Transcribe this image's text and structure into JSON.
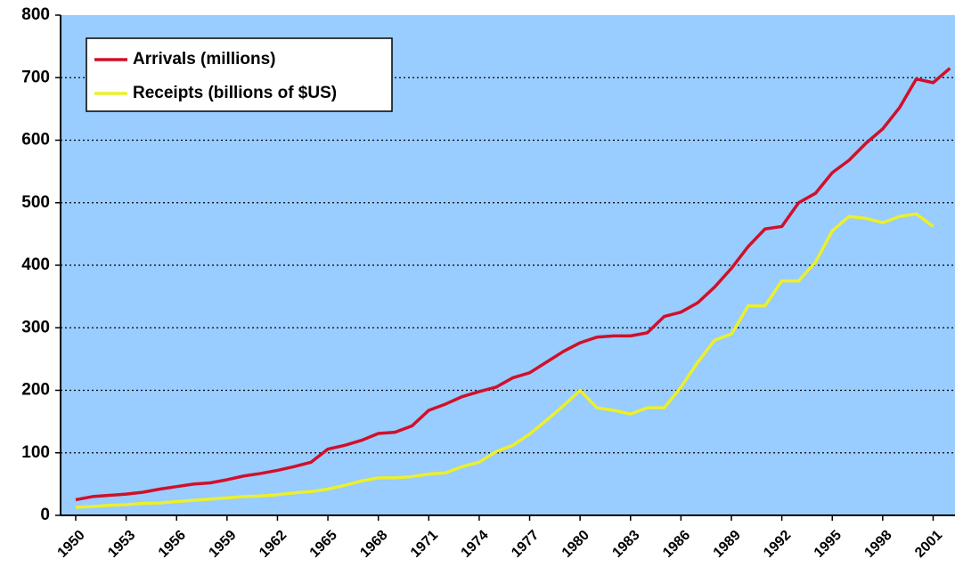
{
  "chart_data": {
    "type": "line",
    "x": [
      1950,
      1951,
      1952,
      1953,
      1954,
      1955,
      1956,
      1957,
      1958,
      1959,
      1960,
      1961,
      1962,
      1963,
      1964,
      1965,
      1966,
      1967,
      1968,
      1969,
      1970,
      1971,
      1972,
      1973,
      1974,
      1975,
      1976,
      1977,
      1978,
      1979,
      1980,
      1981,
      1982,
      1983,
      1984,
      1985,
      1986,
      1987,
      1988,
      1989,
      1990,
      1991,
      1992,
      1993,
      1994,
      1995,
      1996,
      1997,
      1998,
      1999,
      2000,
      2001,
      2002
    ],
    "series": [
      {
        "name": "Arrivals (millions)",
        "color": "#d0102a",
        "values": [
          25,
          30,
          32,
          34,
          37,
          42,
          46,
          50,
          52,
          57,
          63,
          67,
          72,
          78,
          85,
          106,
          112,
          120,
          131,
          133,
          143,
          168,
          178,
          190,
          198,
          205,
          220,
          228,
          245,
          262,
          276,
          285,
          287,
          287,
          292,
          318,
          325,
          340,
          365,
          395,
          430,
          458,
          462,
          500,
          515,
          548,
          568,
          595,
          618,
          652,
          698,
          692,
          715
        ]
      },
      {
        "name": "Receipts (billions of $US)",
        "color": "#ecf02a",
        "values": [
          13,
          14,
          16,
          17,
          19,
          20,
          22,
          24,
          26,
          28,
          30,
          31,
          33,
          36,
          38,
          42,
          48,
          55,
          60,
          60,
          62,
          66,
          68,
          78,
          85,
          102,
          112,
          130,
          152,
          175,
          200,
          172,
          168,
          162,
          172,
          172,
          205,
          245,
          280,
          290,
          335,
          335,
          375,
          375,
          405,
          455,
          478,
          475,
          468,
          478,
          482,
          462,
          null
        ]
      }
    ],
    "xlim": [
      1949.1,
      2002.3
    ],
    "xticks": [
      1950,
      1953,
      1956,
      1959,
      1962,
      1965,
      1968,
      1971,
      1974,
      1977,
      1980,
      1983,
      1986,
      1989,
      1992,
      1995,
      1998,
      2001
    ],
    "ylim": [
      0,
      800
    ],
    "yticks": [
      0,
      100,
      200,
      300,
      400,
      500,
      600,
      700,
      800
    ],
    "grid": true,
    "legend": "upper left"
  }
}
